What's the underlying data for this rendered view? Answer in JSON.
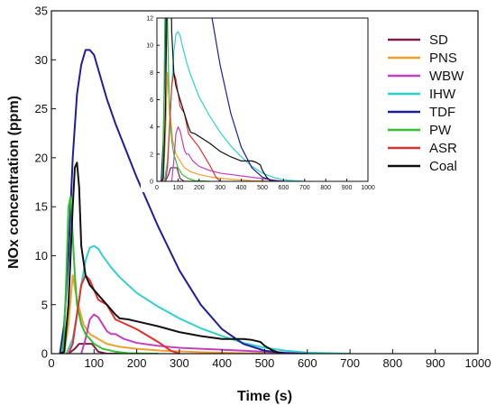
{
  "chart_data": [
    {
      "type": "line",
      "xlabel": "Time (s)",
      "ylabel": "NOx concentration (ppm)",
      "xlim": [
        0,
        1000
      ],
      "ylim": [
        0,
        35
      ],
      "xticks": [
        0,
        100,
        200,
        300,
        400,
        500,
        600,
        700,
        800,
        900,
        1000
      ],
      "yticks": [
        0,
        5,
        10,
        15,
        20,
        25,
        30,
        35
      ],
      "legend_position": "top-right",
      "grid": false,
      "series": [
        {
          "name": "SD",
          "color": "#7b1f4a",
          "x": [
            40,
            55,
            65,
            75,
            85,
            95,
            110,
            130,
            200
          ],
          "y": [
            0,
            0.5,
            1,
            1,
            1,
            1,
            0.2,
            0,
            0
          ]
        },
        {
          "name": "PNS",
          "color": "#f0a030",
          "x": [
            30,
            40,
            50,
            60,
            75,
            90,
            110,
            130,
            160,
            200,
            260,
            350,
            450,
            550
          ],
          "y": [
            0,
            3,
            8,
            5.5,
            3,
            2,
            1.5,
            1,
            0.7,
            0.5,
            0.3,
            0.15,
            0.05,
            0
          ]
        },
        {
          "name": "WBW",
          "color": "#c040c0",
          "x": [
            70,
            80,
            90,
            100,
            110,
            120,
            130,
            140,
            150,
            170,
            200,
            250,
            300,
            350,
            400,
            450,
            500,
            550,
            600
          ],
          "y": [
            0,
            1.5,
            3.5,
            4,
            3.7,
            3,
            2.3,
            2,
            2,
            1.5,
            1.1,
            0.8,
            0.6,
            0.5,
            0.4,
            0.3,
            0.2,
            0.1,
            0
          ]
        },
        {
          "name": "IHW",
          "color": "#30d0d0",
          "x": [
            35,
            50,
            60,
            70,
            80,
            90,
            100,
            110,
            120,
            140,
            160,
            200,
            250,
            300,
            350,
            400,
            450,
            500,
            550,
            600,
            650,
            700
          ],
          "y": [
            0,
            1.5,
            4,
            7,
            9.5,
            10.8,
            11,
            10.7,
            10,
            8.8,
            7.8,
            6.2,
            4.8,
            3.6,
            2.6,
            1.8,
            1.1,
            0.6,
            0.3,
            0.1,
            0.05,
            0
          ]
        },
        {
          "name": "TDF",
          "color": "#1e1e9e",
          "x": [
            20,
            30,
            40,
            50,
            60,
            70,
            80,
            90,
            100,
            110,
            130,
            150,
            200,
            250,
            300,
            350,
            400,
            450,
            500,
            550,
            600
          ],
          "y": [
            0,
            3,
            10,
            20,
            26.5,
            29.5,
            31,
            31,
            30.5,
            29,
            26,
            23.5,
            18,
            13,
            8.5,
            5,
            2.5,
            1,
            0.3,
            0.05,
            0
          ]
        },
        {
          "name": "PW",
          "color": "#30c030",
          "x": [
            25,
            30,
            35,
            40,
            45,
            50,
            55,
            60,
            70,
            80,
            100,
            120,
            150,
            180,
            250
          ],
          "y": [
            0,
            2,
            8,
            15,
            16,
            12,
            8,
            5,
            3,
            2,
            1,
            0.5,
            0.2,
            0.05,
            0
          ]
        },
        {
          "name": "ASR",
          "color": "#e03030",
          "x": [
            40,
            50,
            60,
            70,
            80,
            90,
            100,
            110,
            130,
            150,
            200,
            250,
            280,
            300
          ],
          "y": [
            0,
            1,
            4,
            7,
            8,
            7.5,
            6.5,
            5.5,
            5,
            3.5,
            2.5,
            1.2,
            0.3,
            0
          ]
        },
        {
          "name": "Coal",
          "color": "#111111",
          "x": [
            20,
            30,
            40,
            50,
            55,
            60,
            65,
            70,
            80,
            90,
            100,
            110,
            120,
            130,
            140,
            150,
            160,
            180,
            200,
            250,
            300,
            350,
            400,
            450,
            470,
            490,
            500,
            520,
            540
          ],
          "y": [
            0,
            0.2,
            5,
            15,
            19,
            19.5,
            17,
            11,
            8,
            7,
            6.5,
            6,
            5.5,
            5,
            4.5,
            4,
            3.6,
            3.5,
            3.3,
            2.8,
            2.2,
            1.8,
            1.5,
            1.5,
            1.4,
            1.2,
            0.8,
            0.3,
            0
          ]
        }
      ]
    },
    {
      "type": "line",
      "xlabel": "",
      "ylabel": "",
      "xlim": [
        0,
        1000
      ],
      "ylim": [
        0,
        12
      ],
      "xticks": [
        0,
        100,
        200,
        300,
        400,
        500,
        600,
        700,
        800,
        900,
        1000
      ],
      "yticks": [
        0,
        2,
        4,
        6,
        8,
        10,
        12
      ],
      "grid": false,
      "same_series_as_main": true
    }
  ]
}
